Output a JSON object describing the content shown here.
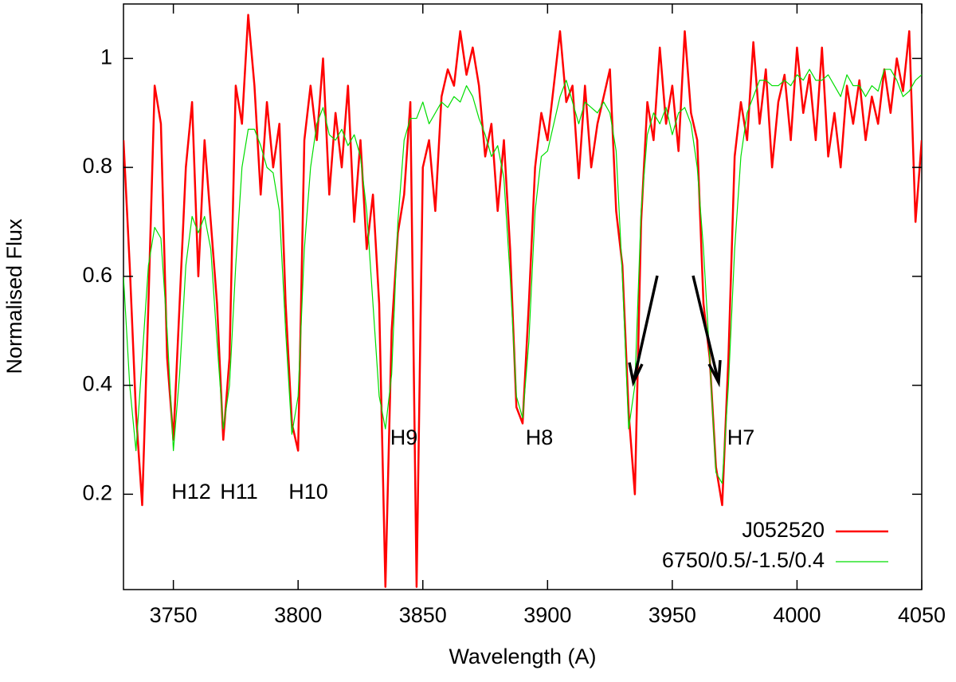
{
  "chart_data": {
    "type": "line",
    "xlabel": "Wavelength (A)",
    "ylabel": "Normalised Flux",
    "x": [
      3730,
      3732.5,
      3735,
      3737.5,
      3740,
      3742.5,
      3745,
      3747.5,
      3750,
      3752.5,
      3755,
      3757.5,
      3760,
      3762.5,
      3765,
      3767.5,
      3770,
      3772.5,
      3775,
      3777.5,
      3780,
      3782.5,
      3785,
      3787.5,
      3790,
      3792.5,
      3795,
      3797.5,
      3800,
      3802.5,
      3805,
      3807.5,
      3810,
      3812.5,
      3815,
      3817.5,
      3820,
      3822.5,
      3825,
      3827.5,
      3830,
      3832.5,
      3835,
      3837.5,
      3840,
      3842.5,
      3845,
      3847.5,
      3850,
      3852.5,
      3855,
      3857.5,
      3860,
      3862.5,
      3865,
      3867.5,
      3870,
      3872.5,
      3875,
      3877.5,
      3880,
      3882.5,
      3885,
      3887.5,
      3890,
      3892.5,
      3895,
      3897.5,
      3900,
      3902.5,
      3905,
      3907.5,
      3910,
      3912.5,
      3915,
      3917.5,
      3920,
      3922.5,
      3925,
      3927.5,
      3930,
      3932.5,
      3935,
      3937.5,
      3940,
      3942.5,
      3945,
      3947.5,
      3950,
      3952.5,
      3955,
      3957.5,
      3960,
      3962.5,
      3965,
      3967.5,
      3970,
      3972.5,
      3975,
      3977.5,
      3980,
      3982.5,
      3985,
      3987.5,
      3990,
      3992.5,
      3995,
      3997.5,
      4000,
      4002.5,
      4005,
      4007.5,
      4010,
      4012.5,
      4015,
      4017.5,
      4020,
      4022.5,
      4025,
      4027.5,
      4030,
      4032.5,
      4035,
      4037.5,
      4040,
      4042.5,
      4045,
      4047.5,
      4050
    ],
    "series": [
      {
        "name": "J052520",
        "color": "#ff0000",
        "width": 2.5,
        "values": [
          0.85,
          0.62,
          0.35,
          0.18,
          0.55,
          0.95,
          0.88,
          0.45,
          0.3,
          0.55,
          0.8,
          0.92,
          0.6,
          0.85,
          0.7,
          0.55,
          0.3,
          0.45,
          0.95,
          0.88,
          1.08,
          0.95,
          0.75,
          0.92,
          0.8,
          0.88,
          0.55,
          0.33,
          0.28,
          0.85,
          0.95,
          0.85,
          1.0,
          0.75,
          0.9,
          0.8,
          0.95,
          0.7,
          0.85,
          0.65,
          0.75,
          0.55,
          0.03,
          0.5,
          0.68,
          0.75,
          0.92,
          0.03,
          0.8,
          0.85,
          0.72,
          0.93,
          0.98,
          0.95,
          1.05,
          0.97,
          1.02,
          0.95,
          0.82,
          0.88,
          0.72,
          0.85,
          0.65,
          0.36,
          0.33,
          0.55,
          0.8,
          0.9,
          0.85,
          0.95,
          1.05,
          0.92,
          0.95,
          0.78,
          0.95,
          0.8,
          0.88,
          0.93,
          0.98,
          0.72,
          0.62,
          0.35,
          0.2,
          0.7,
          0.92,
          0.85,
          1.02,
          0.88,
          0.95,
          0.83,
          1.05,
          0.9,
          0.85,
          0.55,
          0.45,
          0.25,
          0.18,
          0.45,
          0.82,
          0.92,
          0.85,
          1.03,
          0.88,
          0.98,
          0.8,
          0.92,
          0.97,
          0.85,
          1.02,
          0.9,
          0.97,
          0.85,
          1.02,
          0.82,
          0.9,
          0.8,
          0.95,
          0.88,
          0.96,
          0.85,
          0.93,
          0.88,
          0.98,
          0.9,
          1.0,
          0.94,
          1.05,
          0.7,
          0.85
        ]
      },
      {
        "name": "6750/0.5/-1.5/0.4",
        "color": "#00dd00",
        "width": 1.2,
        "values": [
          0.6,
          0.4,
          0.28,
          0.45,
          0.62,
          0.69,
          0.67,
          0.5,
          0.28,
          0.42,
          0.62,
          0.71,
          0.68,
          0.71,
          0.65,
          0.48,
          0.32,
          0.4,
          0.62,
          0.8,
          0.87,
          0.87,
          0.84,
          0.8,
          0.79,
          0.72,
          0.5,
          0.31,
          0.38,
          0.65,
          0.8,
          0.88,
          0.91,
          0.86,
          0.85,
          0.87,
          0.84,
          0.86,
          0.82,
          0.72,
          0.55,
          0.38,
          0.32,
          0.42,
          0.7,
          0.85,
          0.89,
          0.89,
          0.92,
          0.88,
          0.9,
          0.92,
          0.91,
          0.93,
          0.92,
          0.95,
          0.93,
          0.89,
          0.86,
          0.82,
          0.84,
          0.78,
          0.6,
          0.38,
          0.34,
          0.48,
          0.72,
          0.82,
          0.83,
          0.88,
          0.93,
          0.96,
          0.92,
          0.88,
          0.92,
          0.91,
          0.9,
          0.92,
          0.9,
          0.83,
          0.6,
          0.32,
          0.4,
          0.72,
          0.86,
          0.9,
          0.88,
          0.91,
          0.86,
          0.9,
          0.91,
          0.88,
          0.8,
          0.65,
          0.45,
          0.24,
          0.22,
          0.4,
          0.65,
          0.82,
          0.9,
          0.93,
          0.96,
          0.96,
          0.95,
          0.95,
          0.96,
          0.95,
          0.97,
          0.96,
          0.98,
          0.96,
          0.96,
          0.97,
          0.95,
          0.93,
          0.97,
          0.95,
          0.95,
          0.93,
          0.95,
          0.94,
          0.98,
          0.98,
          0.96,
          0.93,
          0.94,
          0.96,
          0.97
        ]
      }
    ],
    "xlim": [
      3730,
      4050
    ],
    "xticks": [
      3750,
      3800,
      3850,
      3900,
      3950,
      4000,
      4050
    ],
    "ylim": [
      0.025,
      1.1
    ],
    "yticks": [
      0.2,
      0.4,
      0.6,
      0.8,
      1
    ],
    "annotations": [
      "H12",
      "H11",
      "H10",
      "H9",
      "H8",
      "H7"
    ],
    "legend": "lower right"
  }
}
